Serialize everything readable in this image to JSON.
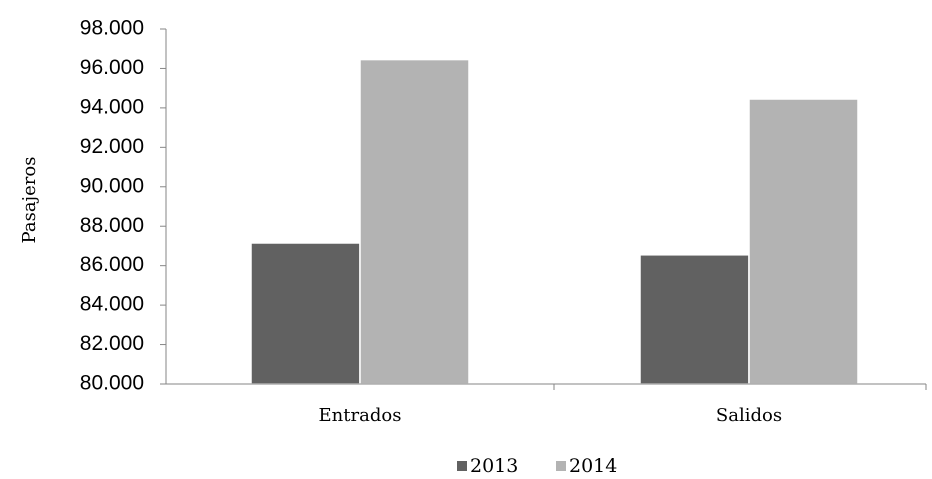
{
  "chart_data": {
    "type": "bar",
    "title": "",
    "xlabel": "",
    "ylabel": "Pasajeros",
    "categories": [
      "Entrados",
      "Salidos"
    ],
    "series": [
      {
        "name": "2013",
        "values": [
          87150,
          86550
        ],
        "color": "#616161"
      },
      {
        "name": "2014",
        "values": [
          96450,
          94450
        ],
        "color": "#b3b3b3"
      }
    ],
    "ylim": [
      80000,
      98000
    ],
    "yticks": [
      "80.000",
      "82.000",
      "84.000",
      "86.000",
      "88.000",
      "90.000",
      "92.000",
      "94.000",
      "96.000",
      "98.000"
    ],
    "grid": false,
    "legend_position": "bottom"
  }
}
